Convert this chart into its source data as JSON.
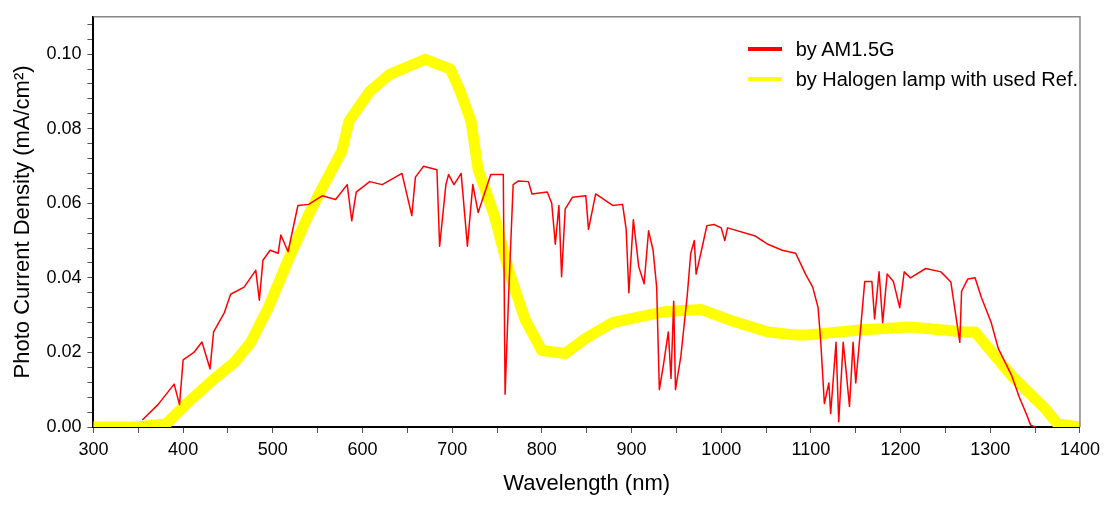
{
  "chart_data": {
    "type": "line",
    "xlabel": "Wavelength (nm)",
    "ylabel": "Photo Current Density (mA/cm²)",
    "xlim": [
      300,
      1400
    ],
    "ylim": [
      0,
      0.11
    ],
    "xticks": [
      300,
      {
        "value": 350,
        "label": null
      },
      400,
      {
        "value": 450,
        "label": null
      },
      500,
      {
        "value": 550,
        "label": null
      },
      600,
      {
        "value": 650,
        "label": null
      },
      700,
      {
        "value": 750,
        "label": null
      },
      800,
      {
        "value": 850,
        "label": null
      },
      900,
      {
        "value": 950,
        "label": null
      },
      1000,
      {
        "value": 1050,
        "label": null
      },
      1100,
      {
        "value": 1150,
        "label": null
      },
      1200,
      {
        "value": 1250,
        "label": null
      },
      1300,
      {
        "value": 1350,
        "label": null
      },
      1400
    ],
    "yticks": [
      {
        "value": 0,
        "label": "0.00"
      },
      {
        "value": 0.004,
        "label": null
      },
      {
        "value": 0.008,
        "label": null
      },
      {
        "value": 0.012,
        "label": null
      },
      {
        "value": 0.016,
        "label": null
      },
      {
        "value": 0.02,
        "label": "0.02"
      },
      {
        "value": 0.024,
        "label": null
      },
      {
        "value": 0.028,
        "label": null
      },
      {
        "value": 0.032,
        "label": null
      },
      {
        "value": 0.036,
        "label": null
      },
      {
        "value": 0.04,
        "label": "0.04"
      },
      {
        "value": 0.044,
        "label": null
      },
      {
        "value": 0.048,
        "label": null
      },
      {
        "value": 0.052,
        "label": null
      },
      {
        "value": 0.056,
        "label": null
      },
      {
        "value": 0.06,
        "label": "0.06"
      },
      {
        "value": 0.064,
        "label": null
      },
      {
        "value": 0.068,
        "label": null
      },
      {
        "value": 0.072,
        "label": null
      },
      {
        "value": 0.076,
        "label": null
      },
      {
        "value": 0.08,
        "label": "0.08"
      },
      {
        "value": 0.084,
        "label": null
      },
      {
        "value": 0.088,
        "label": null
      },
      {
        "value": 0.092,
        "label": null
      },
      {
        "value": 0.096,
        "label": null
      },
      {
        "value": 0.1,
        "label": "0.10"
      },
      {
        "value": 0.104,
        "label": null
      },
      {
        "value": 0.108,
        "label": null
      }
    ],
    "grid": false,
    "legend": "top right",
    "marker": "none",
    "line_style": "solid",
    "series": [
      {
        "name": "by AM1.5G",
        "color": "#ff0000",
        "x": [
          355,
          372,
          390,
          396,
          400,
          412,
          421,
          430,
          434,
          446,
          453,
          468,
          481,
          485,
          489,
          497,
          506,
          509,
          517,
          528,
          540,
          555,
          570,
          583,
          588,
          593,
          608,
          622,
          644,
          655,
          659,
          668,
          683,
          686,
          693,
          696,
          702,
          710,
          717,
          723,
          729,
          743,
          757,
          759,
          763,
          768,
          774,
          785,
          789,
          806,
          811,
          815,
          819,
          822,
          826,
          834,
          849,
          852,
          860,
          879,
          890,
          894,
          897,
          902,
          908,
          914,
          919,
          924,
          928,
          931,
          936,
          941,
          944,
          947,
          949,
          955,
          962,
          966,
          970,
          972,
          978,
          984,
          992,
          1000,
          1004,
          1007,
          1038,
          1052,
          1068,
          1083,
          1094,
          1102,
          1108,
          1111,
          1115,
          1120,
          1122,
          1128,
          1131,
          1136,
          1139,
          1143,
          1147,
          1150,
          1156,
          1160,
          1168,
          1171,
          1176,
          1180,
          1185,
          1192,
          1199,
          1204,
          1211,
          1228,
          1245,
          1256,
          1266,
          1268,
          1275,
          1283,
          1290,
          1301,
          1309,
          1324,
          1332,
          1340,
          1345,
          1350
        ],
        "values": [
          0.002,
          0.006,
          0.0115,
          0.006,
          0.018,
          0.02,
          0.0228,
          0.0156,
          0.0255,
          0.0307,
          0.0356,
          0.0375,
          0.042,
          0.034,
          0.0447,
          0.0474,
          0.0466,
          0.0515,
          0.047,
          0.0594,
          0.0597,
          0.062,
          0.061,
          0.065,
          0.0553,
          0.063,
          0.0658,
          0.065,
          0.068,
          0.0567,
          0.067,
          0.0699,
          0.069,
          0.0485,
          0.065,
          0.0677,
          0.065,
          0.068,
          0.0485,
          0.065,
          0.0575,
          0.0677,
          0.0677,
          0.0088,
          0.0356,
          0.065,
          0.066,
          0.0658,
          0.0625,
          0.063,
          0.06,
          0.049,
          0.0594,
          0.0403,
          0.0584,
          0.0616,
          0.062,
          0.053,
          0.0625,
          0.0594,
          0.0597,
          0.053,
          0.036,
          0.0556,
          0.043,
          0.0384,
          0.0526,
          0.0474,
          0.0375,
          0.01,
          0.0173,
          0.0255,
          0.013,
          0.0337,
          0.01,
          0.019,
          0.035,
          0.0466,
          0.05,
          0.041,
          0.0474,
          0.054,
          0.0543,
          0.0534,
          0.05,
          0.0534,
          0.0512,
          0.049,
          0.0474,
          0.0466,
          0.041,
          0.0375,
          0.032,
          0.0227,
          0.0063,
          0.0118,
          0.0036,
          0.0227,
          0.0014,
          0.0227,
          0.0156,
          0.0055,
          0.0227,
          0.0118,
          0.028,
          0.039,
          0.039,
          0.029,
          0.0416,
          0.028,
          0.041,
          0.039,
          0.032,
          0.0416,
          0.04,
          0.0425,
          0.0416,
          0.0389,
          0.0227,
          0.0364,
          0.0397,
          0.04,
          0.0348,
          0.028,
          0.021,
          0.0137,
          0.0082,
          0.0036,
          0.0005,
          0
        ]
      },
      {
        "name": "by Halogen lamp with used Ref.",
        "color": "#ffff00",
        "x": [
          300,
          350,
          365,
          381,
          404,
          434,
          457,
          475,
          495,
          517,
          540,
          555,
          577,
          585,
          608,
          630,
          670,
          698,
          709,
          721,
          729,
          747,
          763,
          781,
          800,
          826,
          849,
          879,
          910,
          939,
          978,
          1015,
          1052,
          1081,
          1098,
          1154,
          1211,
          1271,
          1283,
          1324,
          1362,
          1375,
          1400
        ],
        "values": [
          0,
          0,
          0.0005,
          0.0008,
          0.0063,
          0.0128,
          0.0173,
          0.0225,
          0.032,
          0.0447,
          0.057,
          0.064,
          0.074,
          0.082,
          0.09,
          0.0945,
          0.0986,
          0.096,
          0.09,
          0.082,
          0.069,
          0.0567,
          0.042,
          0.029,
          0.0205,
          0.0197,
          0.0238,
          0.028,
          0.0296,
          0.031,
          0.0315,
          0.0282,
          0.0255,
          0.0247,
          0.0247,
          0.026,
          0.0268,
          0.0255,
          0.0255,
          0.0137,
          0.0047,
          0.0008,
          0
        ]
      }
    ]
  }
}
